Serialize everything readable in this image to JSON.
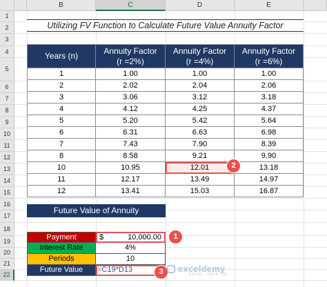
{
  "columns": [
    {
      "letter": "B",
      "selected": false
    },
    {
      "letter": "C",
      "selected": true
    },
    {
      "letter": "D",
      "selected": false
    },
    {
      "letter": "E",
      "selected": false
    }
  ],
  "rows": [
    "1",
    "2",
    "3",
    "4",
    "5",
    "6",
    "7",
    "8",
    "9",
    "10",
    "11",
    "12",
    "13",
    "14",
    "15",
    "16",
    "17",
    "18",
    "19",
    "20",
    "21",
    "22"
  ],
  "selected_row": "22",
  "title": "Utilizing FV Function to Calculate Future Value Annuity Factor",
  "table": {
    "headers": [
      {
        "line1": "Years (n)",
        "line2": ""
      },
      {
        "line1": "Annuity Factor",
        "line2": "(r =2%)"
      },
      {
        "line1": "Annuity Factor",
        "line2": "(r =4%)"
      },
      {
        "line1": "Annuity Factor",
        "line2": "(r =6%)"
      }
    ],
    "rows": [
      [
        "1",
        "1.00",
        "1.00",
        "1.00"
      ],
      [
        "2",
        "2.02",
        "2.04",
        "2.06"
      ],
      [
        "3",
        "3.06",
        "3.12",
        "3.18"
      ],
      [
        "4",
        "4.12",
        "4.25",
        "4.37"
      ],
      [
        "5",
        "5.20",
        "5.42",
        "5.64"
      ],
      [
        "6",
        "6.31",
        "6.63",
        "6.98"
      ],
      [
        "7",
        "7.43",
        "7.90",
        "8.39"
      ],
      [
        "8",
        "8.58",
        "9.21",
        "9.90"
      ],
      [
        "10",
        "10.95",
        "12.01",
        "13.18"
      ],
      [
        "11",
        "12.17",
        "13.49",
        "14.97"
      ],
      [
        "12",
        "13.41",
        "15.03",
        "16.87"
      ]
    ]
  },
  "fv_section": {
    "title": "Future Value of Annuity",
    "payment_label": "Payment",
    "payment_currency": "$",
    "payment_value": "10,000.00",
    "rate_label": "Interest Rate",
    "rate_value": "4%",
    "periods_label": "Periods",
    "periods_value": "10",
    "fv_label": "Future Value",
    "fv_formula": "=C19*D13"
  },
  "badges": [
    "1",
    "2",
    "3"
  ],
  "watermark": {
    "name": "exceldemy",
    "tagline": "EXCEL · DATA · BI"
  },
  "colors": {
    "header_navy": "#1f3864",
    "payment_red": "#c00000",
    "rate_green": "#00b050",
    "periods_yellow": "#ffc000",
    "callout_red": "#e8514f"
  }
}
